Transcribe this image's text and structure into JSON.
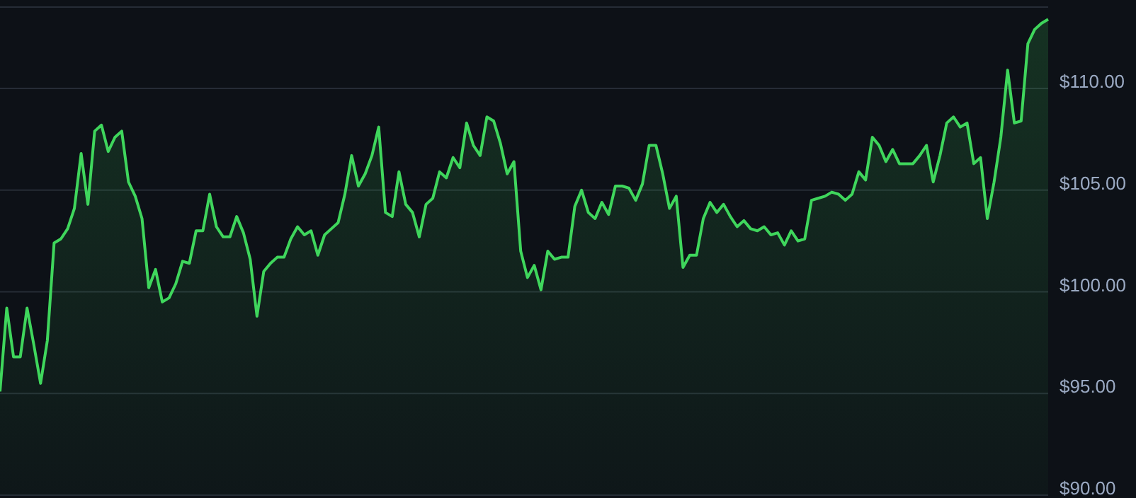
{
  "chart_data": {
    "type": "area",
    "categories": [
      null,
      null,
      null,
      null,
      null,
      null,
      null,
      null,
      null,
      null,
      null,
      null,
      null,
      null,
      null,
      null,
      null,
      null,
      null,
      null,
      null,
      null,
      null,
      null,
      null,
      null,
      null,
      null,
      null,
      null,
      null,
      null,
      null,
      null,
      null,
      null,
      null,
      null,
      null,
      null,
      null,
      null,
      null,
      null,
      null,
      null,
      null,
      null,
      null,
      null,
      null,
      null,
      null,
      null,
      null,
      null,
      null,
      null,
      null,
      null,
      null,
      null,
      null,
      null,
      null,
      null,
      null,
      null,
      null,
      null,
      null,
      null,
      null,
      null,
      null,
      null,
      null,
      null,
      null,
      null,
      null,
      null,
      null,
      null,
      null,
      null,
      null,
      null,
      null,
      null,
      null,
      null,
      null,
      null,
      null,
      null,
      null,
      null,
      null,
      null,
      null,
      null,
      null,
      null,
      null,
      null,
      null,
      null,
      null,
      null,
      null,
      null,
      null,
      null,
      null,
      null,
      null,
      null,
      null,
      null,
      null,
      null,
      null,
      null,
      null,
      null,
      null,
      null,
      null,
      null,
      null,
      null,
      null,
      null,
      null,
      null,
      null,
      null,
      null,
      null,
      null,
      null,
      null,
      null,
      null,
      null,
      null,
      null,
      null,
      null,
      null,
      null,
      null,
      null,
      null,
      null
    ],
    "series": [
      {
        "color": "#3fd65c",
        "values": [
          95.1,
          99.2,
          96.8,
          96.8,
          99.2,
          97.4,
          95.5,
          97.6,
          102.4,
          102.6,
          103.1,
          104.1,
          106.8,
          104.3,
          107.9,
          108.2,
          106.9,
          107.6,
          107.9,
          105.4,
          104.7,
          103.6,
          100.2,
          101.1,
          99.5,
          99.7,
          100.4,
          101.5,
          101.4,
          103.0,
          103.0,
          104.8,
          103.2,
          102.7,
          102.7,
          103.7,
          102.9,
          101.6,
          98.8,
          101.0,
          101.4,
          101.7,
          101.7,
          102.6,
          103.2,
          102.8,
          103.0,
          101.8,
          102.8,
          103.1,
          103.4,
          104.8,
          106.7,
          105.2,
          105.8,
          106.7,
          108.1,
          103.9,
          103.7,
          105.9,
          104.3,
          103.9,
          102.7,
          104.3,
          104.6,
          105.9,
          105.6,
          106.6,
          106.1,
          108.3,
          107.2,
          106.7,
          108.6,
          108.4,
          107.3,
          105.8,
          106.4,
          102.0,
          100.7,
          101.3,
          100.1,
          102.0,
          101.6,
          101.7,
          101.7,
          104.2,
          105.0,
          103.9,
          103.6,
          104.4,
          103.8,
          105.2,
          105.2,
          105.1,
          104.5,
          105.3,
          107.2,
          107.2,
          105.8,
          104.1,
          104.7,
          101.2,
          101.8,
          101.8,
          103.6,
          104.4,
          103.9,
          104.3,
          103.7,
          103.2,
          103.5,
          103.1,
          103.0,
          103.2,
          102.8,
          102.9,
          102.3,
          103.0,
          102.5,
          102.6,
          104.5,
          104.6,
          104.7,
          104.9,
          104.8,
          104.5,
          104.8,
          105.9,
          105.5,
          107.6,
          107.2,
          106.4,
          107.0,
          106.3,
          106.3,
          106.3,
          106.7,
          107.2,
          105.4,
          106.7,
          108.3,
          108.6,
          108.1,
          108.3,
          106.3,
          106.6,
          103.6,
          105.4,
          107.6,
          110.9,
          108.3,
          108.4,
          112.2,
          112.9,
          113.2,
          113.4
        ]
      }
    ],
    "ylim": [
      90,
      114
    ],
    "yticks": [
      {
        "value": 90,
        "label": "$90.00"
      },
      {
        "value": 95,
        "label": "$95.00"
      },
      {
        "value": 100,
        "label": "$100.00"
      },
      {
        "value": 105,
        "label": "$105.00"
      },
      {
        "value": 110,
        "label": "$110.00"
      }
    ],
    "grid": "y",
    "tick_labels": "y"
  }
}
